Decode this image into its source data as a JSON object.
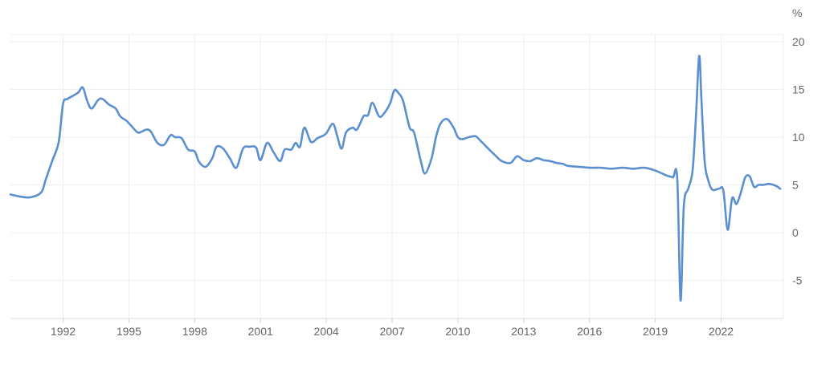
{
  "chart_data": {
    "type": "line",
    "unit_label": "%",
    "x_tick_labels": [
      "1992",
      "1995",
      "1998",
      "2001",
      "2004",
      "2007",
      "2010",
      "2013",
      "2016",
      "2019",
      "2022"
    ],
    "x_tick_values": [
      1992,
      1995,
      1998,
      2001,
      2004,
      2007,
      2010,
      2013,
      2016,
      2019,
      2022
    ],
    "y_tick_labels": [
      "20",
      "15",
      "10",
      "5",
      "0",
      "-5"
    ],
    "y_tick_values": [
      20,
      15,
      10,
      5,
      0,
      -5
    ],
    "xlim": [
      1989.6,
      2024.85
    ],
    "ylim": [
      -9,
      21
    ],
    "grid": true,
    "series": [
      {
        "color": "#5b8fd0",
        "x": [
          1989.6,
          1990.0,
          1990.5,
          1991.0,
          1991.2,
          1991.5,
          1991.8,
          1992.0,
          1992.2,
          1992.5,
          1992.7,
          1992.9,
          1993.1,
          1993.3,
          1993.6,
          1993.8,
          1994.1,
          1994.4,
          1994.6,
          1994.9,
          1995.1,
          1995.4,
          1995.6,
          1995.8,
          1996.0,
          1996.3,
          1996.6,
          1996.9,
          1997.1,
          1997.4,
          1997.7,
          1998.0,
          1998.2,
          1998.5,
          1998.8,
          1999.0,
          1999.3,
          1999.6,
          1999.9,
          2000.2,
          2000.5,
          2000.8,
          2001.0,
          2001.3,
          2001.6,
          2001.9,
          2002.1,
          2002.4,
          2002.6,
          2002.8,
          2003.0,
          2003.3,
          2003.6,
          2003.8,
          2004.0,
          2004.3,
          2004.5,
          2004.7,
          2004.9,
          2005.2,
          2005.4,
          2005.7,
          2005.9,
          2006.1,
          2006.4,
          2006.6,
          2006.9,
          2007.1,
          2007.3,
          2007.5,
          2007.8,
          2008.0,
          2008.3,
          2008.5,
          2008.8,
          2009.0,
          2009.2,
          2009.5,
          2009.8,
          2010.0,
          2010.2,
          2010.5,
          2010.8,
          2011.0,
          2011.3,
          2011.7,
          2012.0,
          2012.4,
          2012.7,
          2013.0,
          2013.3,
          2013.6,
          2013.9,
          2014.2,
          2014.5,
          2014.8,
          2015.0,
          2015.5,
          2016.0,
          2016.5,
          2017.0,
          2017.5,
          2018.0,
          2018.5,
          2019.0,
          2019.5,
          2019.8,
          2020.0,
          2020.15,
          2020.3,
          2020.5,
          2020.7,
          2020.85,
          2021.0,
          2021.1,
          2021.25,
          2021.4,
          2021.6,
          2021.9,
          2022.1,
          2022.3,
          2022.5,
          2022.7,
          2022.9,
          2023.1,
          2023.3,
          2023.5,
          2023.7,
          2023.9,
          2024.2,
          2024.5,
          2024.7
        ],
        "values": [
          4.0,
          3.8,
          3.7,
          4.2,
          5.5,
          7.5,
          9.5,
          13.5,
          14.0,
          14.4,
          14.7,
          15.2,
          13.8,
          13.0,
          13.9,
          14.0,
          13.4,
          13.0,
          12.2,
          11.7,
          11.2,
          10.5,
          10.6,
          10.8,
          10.6,
          9.4,
          9.2,
          10.2,
          10.0,
          9.9,
          8.7,
          8.5,
          7.4,
          6.9,
          7.8,
          9.0,
          8.8,
          7.8,
          6.8,
          8.8,
          9.0,
          8.9,
          7.6,
          9.4,
          8.4,
          7.5,
          8.7,
          8.7,
          9.4,
          9.0,
          11.0,
          9.5,
          9.9,
          10.1,
          10.4,
          11.4,
          10.1,
          8.8,
          10.5,
          11.0,
          10.8,
          12.2,
          12.3,
          13.6,
          12.2,
          12.4,
          13.5,
          14.9,
          14.6,
          13.8,
          11.0,
          10.5,
          7.6,
          6.2,
          7.8,
          10.0,
          11.4,
          11.9,
          11.0,
          10.0,
          9.8,
          10.0,
          10.1,
          9.7,
          9.0,
          8.1,
          7.5,
          7.3,
          8.0,
          7.6,
          7.5,
          7.8,
          7.6,
          7.5,
          7.3,
          7.2,
          7.0,
          6.9,
          6.8,
          6.8,
          6.7,
          6.8,
          6.7,
          6.8,
          6.5,
          6.0,
          5.8,
          5.7,
          -7.1,
          2.8,
          4.6,
          6.5,
          12.0,
          18.5,
          14.0,
          7.5,
          5.6,
          4.5,
          4.6,
          4.4,
          0.3,
          3.6,
          3.0,
          4.2,
          5.8,
          5.9,
          4.8,
          5.0,
          5.0,
          5.1,
          4.9,
          4.6
        ]
      }
    ]
  }
}
